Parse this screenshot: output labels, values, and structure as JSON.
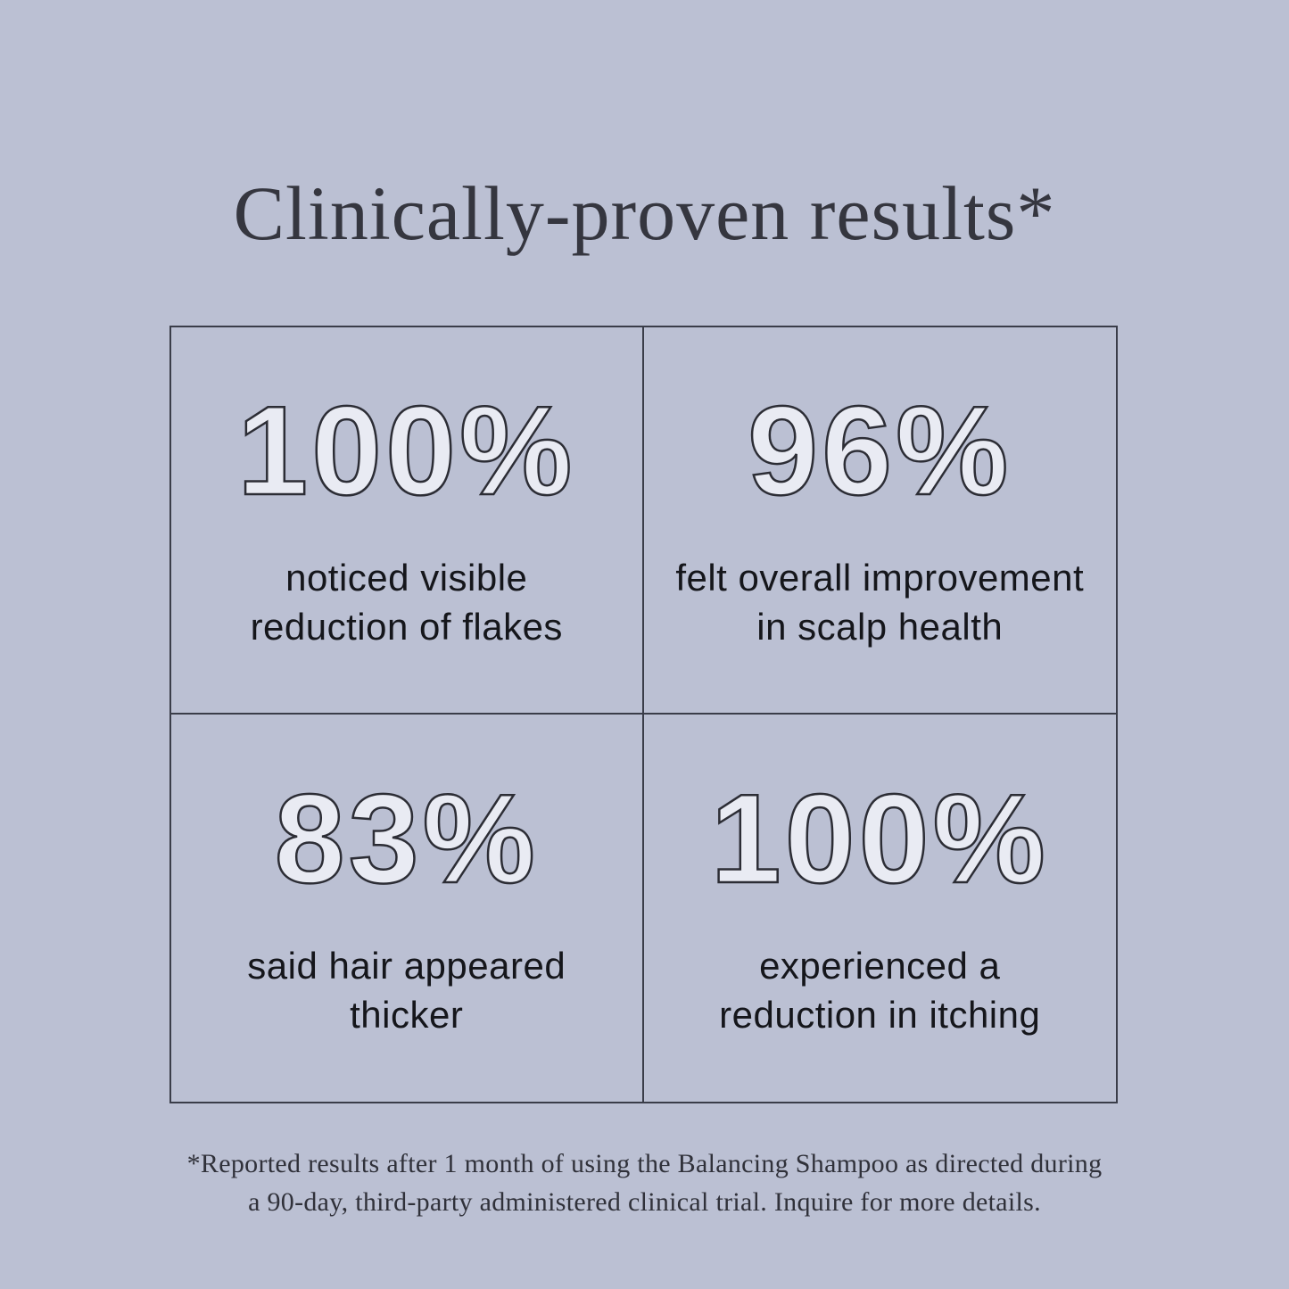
{
  "page": {
    "title": "Clinically-proven results*",
    "stats": [
      {
        "value": "100%",
        "label_line1": "noticed visible",
        "label_line2": "reduction of flakes"
      },
      {
        "value": "96%",
        "label_line1": "felt overall improvement",
        "label_line2": "in scalp health"
      },
      {
        "value": "83%",
        "label_line1": "said hair appeared",
        "label_line2": "thicker"
      },
      {
        "value": "100%",
        "label_line1": "experienced a",
        "label_line2": "reduction in itching"
      }
    ],
    "footnote": {
      "line1": "*Reported results after 1 month of using the Balancing Shampoo as directed during",
      "line2": "a 90-day, third-party administered clinical trial. Inquire for more details."
    },
    "colors": {
      "background": "#bbc0d3",
      "title_color": "#35363f",
      "grid_border": "#3a3d49",
      "stat_fill": "#e9ebf3",
      "stat_outline": "#2c2d35",
      "text_dark": "#15161b",
      "footnote_color": "#30313a"
    }
  }
}
